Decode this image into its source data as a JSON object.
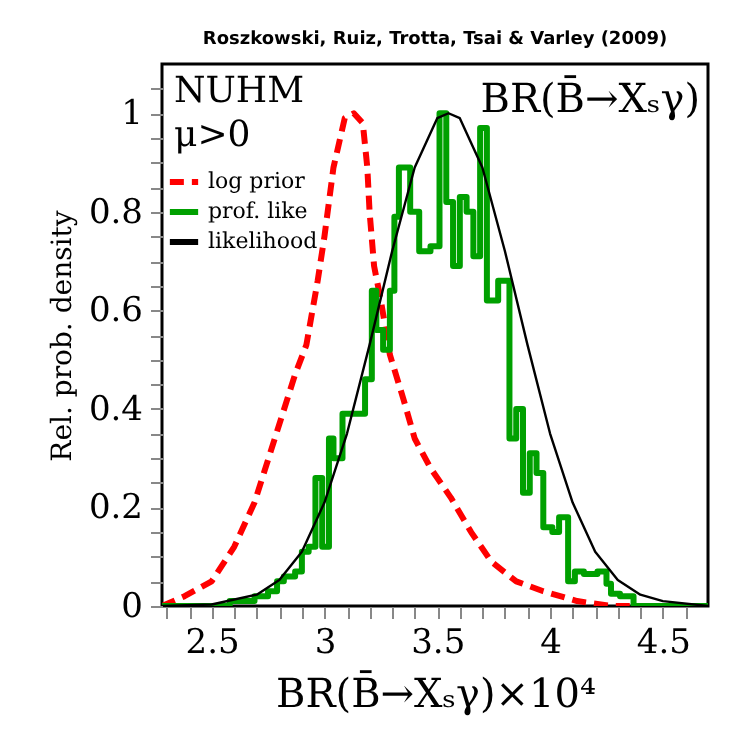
{
  "chart_data": {
    "type": "line",
    "title": "Roszkowski, Ruiz, Trotta, Tsai & Varley (2009)",
    "xlabel": "BR(B̄→Xₛγ)×10⁴",
    "ylabel": "Rel. prob. density",
    "annotations": [
      "NUHM",
      "μ>0",
      "BR(B̄→Xₛγ)"
    ],
    "xlim": [
      2.28,
      4.7
    ],
    "ylim": [
      0,
      1.1
    ],
    "xticks": [
      {
        "value": 2.3,
        "label": null
      },
      {
        "value": 2.4,
        "label": null
      },
      2.5,
      {
        "value": 2.6,
        "label": null
      },
      {
        "value": 2.7,
        "label": null
      },
      {
        "value": 2.8,
        "label": null
      },
      {
        "value": 2.9,
        "label": null
      },
      3,
      {
        "value": 3.1,
        "label": null
      },
      {
        "value": 3.2,
        "label": null
      },
      {
        "value": 3.3,
        "label": null
      },
      {
        "value": 3.4,
        "label": null
      },
      3.5,
      {
        "value": 3.6,
        "label": null
      },
      {
        "value": 3.7,
        "label": null
      },
      {
        "value": 3.8,
        "label": null
      },
      {
        "value": 3.9,
        "label": null
      },
      4,
      {
        "value": 4.1,
        "label": null
      },
      {
        "value": 4.2,
        "label": null
      },
      {
        "value": 4.3,
        "label": null
      },
      {
        "value": 4.4,
        "label": null
      },
      4.5,
      {
        "value": 4.6,
        "label": null
      }
    ],
    "yticks": [
      0,
      {
        "value": 0.05,
        "label": null
      },
      {
        "value": 0.1,
        "label": null
      },
      {
        "value": 0.15,
        "label": null
      },
      0.2,
      {
        "value": 0.25,
        "label": null
      },
      {
        "value": 0.3,
        "label": null
      },
      {
        "value": 0.35,
        "label": null
      },
      0.4,
      {
        "value": 0.45,
        "label": null
      },
      {
        "value": 0.5,
        "label": null
      },
      {
        "value": 0.55,
        "label": null
      },
      0.6,
      {
        "value": 0.65,
        "label": null
      },
      {
        "value": 0.7,
        "label": null
      },
      {
        "value": 0.75,
        "label": null
      },
      0.8,
      {
        "value": 0.85,
        "label": null
      },
      {
        "value": 0.9,
        "label": null
      },
      {
        "value": 0.95,
        "label": null
      },
      1,
      {
        "value": 1.05,
        "label": null
      }
    ],
    "grid": false,
    "legend": "top left",
    "marker": "none",
    "series": [
      {
        "name": "log prior",
        "color": "#ff0000",
        "line_style": "dashed",
        "x": [
          2.28,
          2.38,
          2.5,
          2.6,
          2.69,
          2.78,
          2.87,
          2.92,
          2.97,
          3.0,
          3.04,
          3.09,
          3.13,
          3.17,
          3.19,
          3.2,
          3.22,
          3.25,
          3.29,
          3.35,
          3.4,
          3.47,
          3.56,
          3.65,
          3.74,
          3.85,
          3.97,
          4.12,
          4.27,
          4.47
        ],
        "values": [
          0,
          0.02,
          0.05,
          0.12,
          0.21,
          0.34,
          0.47,
          0.53,
          0.66,
          0.75,
          0.89,
          0.99,
          1.0,
          0.98,
          0.89,
          0.8,
          0.69,
          0.62,
          0.51,
          0.42,
          0.34,
          0.28,
          0.22,
          0.15,
          0.09,
          0.05,
          0.03,
          0.01,
          0,
          0
        ]
      },
      {
        "name": "prof. like",
        "type": "step",
        "color": "#00a000",
        "line_style": "solid",
        "x": [
          2.28,
          2.58,
          2.69,
          2.75,
          2.79,
          2.82,
          2.87,
          2.9,
          2.93,
          2.96,
          2.99,
          3.02,
          3.04,
          3.08,
          3.18,
          3.21,
          3.23,
          3.26,
          3.29,
          3.31,
          3.33,
          3.38,
          3.42,
          3.47,
          3.51,
          3.54,
          3.57,
          3.6,
          3.63,
          3.66,
          3.69,
          3.72,
          3.77,
          3.82,
          3.85,
          3.88,
          3.91,
          3.94,
          3.97,
          4.01,
          4.04,
          4.08,
          4.11,
          4.15,
          4.21,
          4.25,
          4.27,
          4.31,
          4.37,
          4.7
        ],
        "values": [
          0,
          0.01,
          0.02,
          0.03,
          0.05,
          0.06,
          0.07,
          0.11,
          0.12,
          0.26,
          0.12,
          0.34,
          0.3,
          0.39,
          0.46,
          0.64,
          0.56,
          0.52,
          0.64,
          0.79,
          0.89,
          0.8,
          0.72,
          0.73,
          1.0,
          0.82,
          0.69,
          0.83,
          0.8,
          0.71,
          0.97,
          0.62,
          0.66,
          0.34,
          0.4,
          0.23,
          0.31,
          0.27,
          0.16,
          0.15,
          0.18,
          0.05,
          0.07,
          0.065,
          0.07,
          0.045,
          0.025,
          0.02,
          0,
          0
        ]
      },
      {
        "name": "likelihood",
        "color": "#000000",
        "line_style": "solid",
        "x": [
          2.28,
          2.5,
          2.7,
          2.8,
          2.9,
          3.0,
          3.1,
          3.2,
          3.3,
          3.4,
          3.5,
          3.55,
          3.6,
          3.7,
          3.8,
          3.9,
          4.0,
          4.1,
          4.2,
          4.3,
          4.4,
          4.5,
          4.7
        ],
        "values": [
          0,
          0.003,
          0.023,
          0.053,
          0.11,
          0.21,
          0.35,
          0.53,
          0.72,
          0.89,
          0.99,
          1.0,
          0.99,
          0.89,
          0.72,
          0.53,
          0.35,
          0.21,
          0.11,
          0.053,
          0.023,
          0.01,
          0
        ]
      }
    ]
  }
}
